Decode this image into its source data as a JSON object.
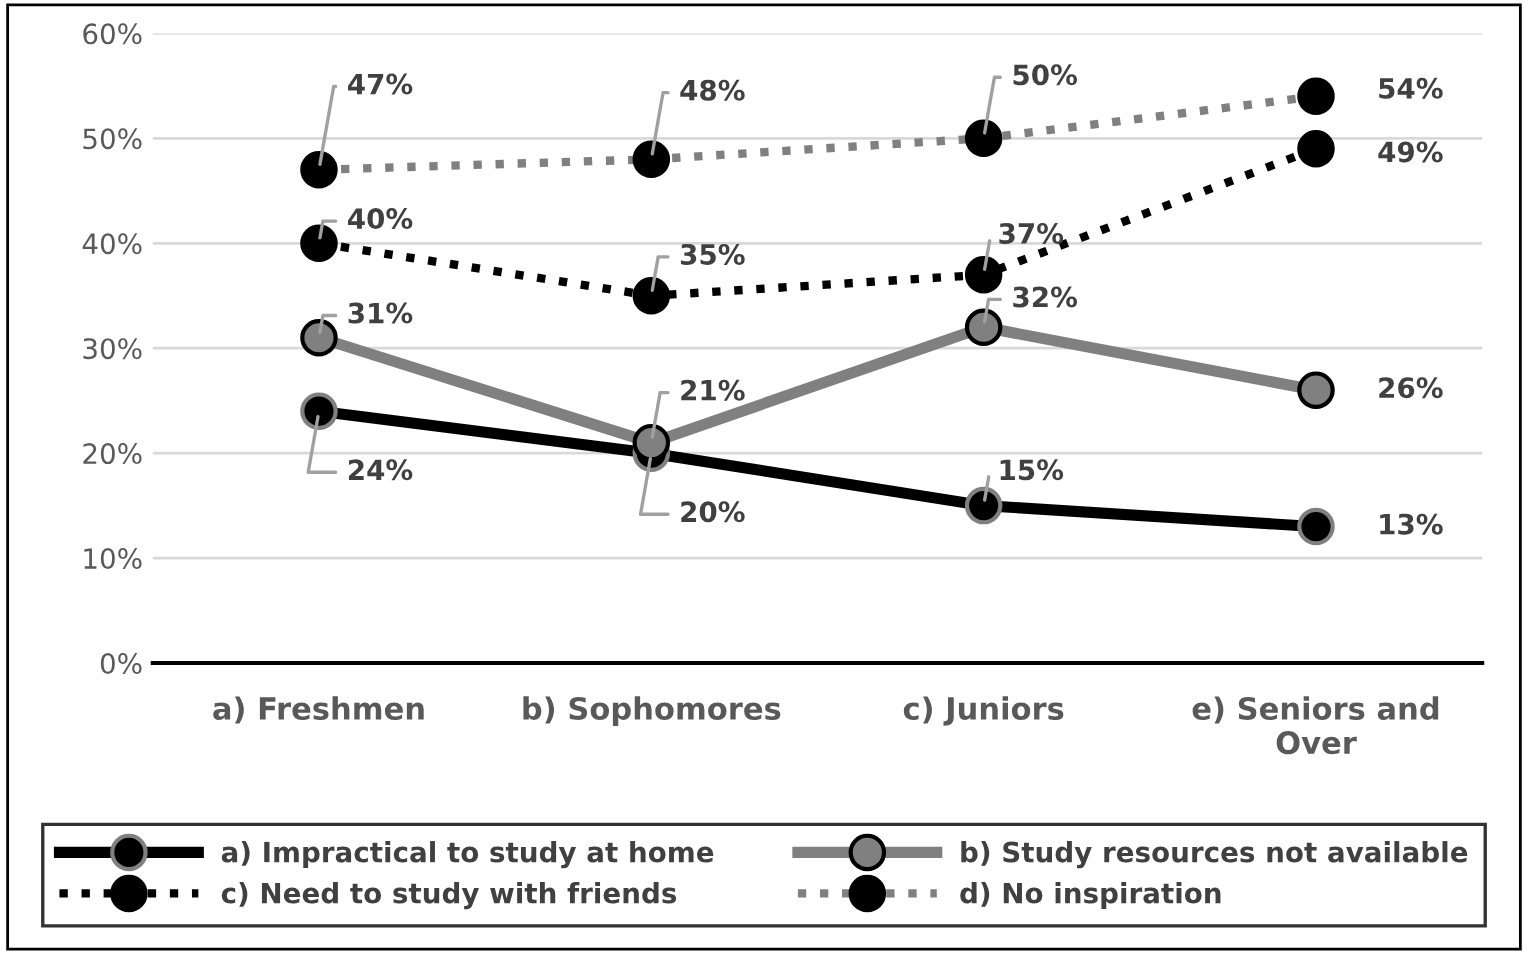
{
  "chart_data": {
    "type": "line",
    "categories": [
      "a) Freshmen",
      "b) Sophomores",
      "c) Juniors",
      "e) Seniors and\nOver"
    ],
    "series": [
      {
        "name": "a) Impractical to study at home",
        "color": "#000000",
        "line_style": "solid",
        "values": [
          24,
          20,
          15,
          13
        ],
        "value_labels": [
          "24%",
          "20%",
          "15%",
          "13%"
        ]
      },
      {
        "name": "b) Study resources not available",
        "color": "#808080",
        "line_style": "solid",
        "values": [
          31,
          21,
          32,
          26
        ],
        "value_labels": [
          "31%",
          "21%",
          "32%",
          "26%"
        ]
      },
      {
        "name": "c) Need to study with friends",
        "color": "#000000",
        "line_style": "dotted",
        "values": [
          40,
          35,
          37,
          49
        ],
        "value_labels": [
          "40%",
          "35%",
          "37%",
          "49%"
        ]
      },
      {
        "name": "d) No inspiration",
        "color": "#808080",
        "line_style": "dotted",
        "values": [
          47,
          48,
          50,
          54
        ],
        "value_labels": [
          "47%",
          "48%",
          "50%",
          "54%"
        ]
      }
    ],
    "ylim": [
      0,
      60
    ],
    "yticks": [
      {
        "value": 0,
        "label": "0%"
      },
      {
        "value": 10,
        "label": "10%"
      },
      {
        "value": 20,
        "label": "20%"
      },
      {
        "value": 30,
        "label": "30%"
      },
      {
        "value": 40,
        "label": "40%"
      },
      {
        "value": 50,
        "label": "50%"
      },
      {
        "value": 60,
        "label": "60%"
      }
    ],
    "grid": "y",
    "legend": "bottom",
    "marker": "circle"
  }
}
